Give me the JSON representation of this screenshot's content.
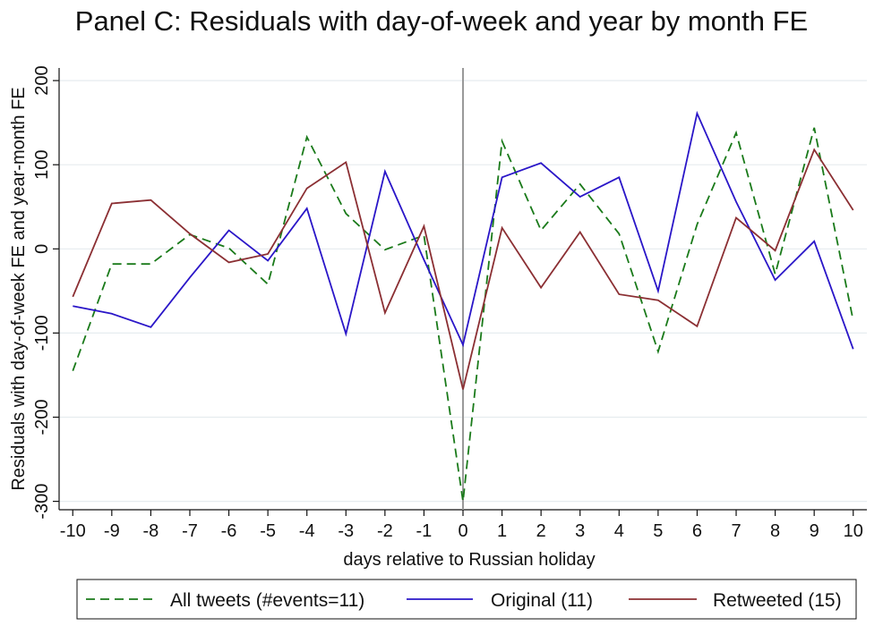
{
  "chart_data": {
    "type": "line",
    "title": "Panel C: Residuals with day-of-week and year by month FE",
    "xlabel": "days relative to Russian holiday",
    "ylabel": "Residuals with day-of-week FE and year-month FE",
    "x": [
      -10,
      -9,
      -8,
      -7,
      -6,
      -5,
      -4,
      -3,
      -2,
      -1,
      0,
      1,
      2,
      3,
      4,
      5,
      6,
      7,
      8,
      9,
      10
    ],
    "xticks": [
      "-10",
      "-9",
      "-8",
      "-7",
      "-6",
      "-5",
      "-4",
      "-3",
      "-2",
      "-1",
      "0",
      "1",
      "2",
      "3",
      "4",
      "5",
      "6",
      "7",
      "8",
      "9",
      "10"
    ],
    "yticks": [
      200,
      100,
      0,
      -100,
      -200,
      -300
    ],
    "ylim": [
      -310,
      215
    ],
    "xlim": [
      -10.35,
      10.35
    ],
    "grid": true,
    "reference_line_x": 0,
    "legend_position": "bottom",
    "series": [
      {
        "name": "All tweets (#events=11)",
        "color": "#1a7a1a",
        "style": "dashed",
        "values": [
          -145,
          -18,
          -18,
          17,
          1,
          -42,
          133,
          42,
          -1,
          16,
          -300,
          128,
          22,
          77,
          18,
          -122,
          29,
          138,
          -30,
          144,
          -85
        ]
      },
      {
        "name": "Original (11)",
        "color": "#2a16c8",
        "style": "solid",
        "values": [
          -68,
          -77,
          -93,
          -34,
          22,
          -14,
          48,
          -101,
          92,
          -13,
          -114,
          85,
          102,
          62,
          85,
          -50,
          161,
          56,
          -37,
          9,
          -119
        ]
      },
      {
        "name": "Retweeted (15)",
        "color": "#8b2f33",
        "style": "solid",
        "values": [
          -57,
          54,
          58,
          18,
          -16,
          -6,
          72,
          103,
          -76,
          27,
          -167,
          25,
          -46,
          20,
          -54,
          -61,
          -92,
          37,
          -2,
          118,
          46
        ]
      }
    ]
  }
}
